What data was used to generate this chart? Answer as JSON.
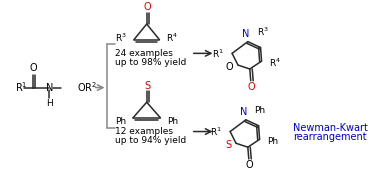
{
  "bg_color": "#ffffff",
  "bond_color": "#2a2a2a",
  "red_color": "#dd0000",
  "blue_color": "#0000cc",
  "gray_color": "#888888",
  "text_24": "24 examples",
  "text_98": "up to 98% yield",
  "text_12": "12 examples",
  "text_94": "up to 94% yield",
  "newman_kwart": "Newman-Kwart",
  "rearrangement": "rearrangement"
}
